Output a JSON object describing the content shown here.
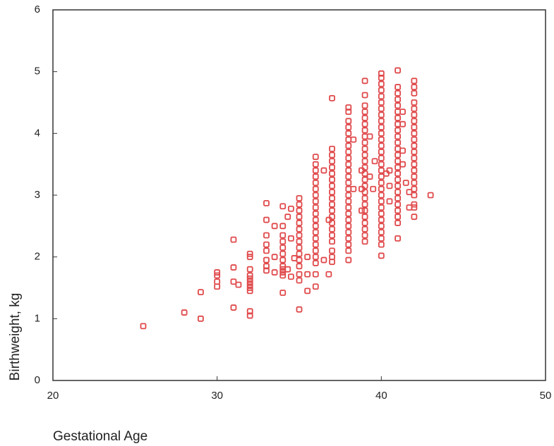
{
  "chart_data": {
    "type": "scatter",
    "x_label": "Gestational Age",
    "y_label": "Birthweight, kg",
    "color": "#e0494b",
    "xlim": [
      20,
      50
    ],
    "xticks": [
      20,
      30,
      40,
      50
    ],
    "ylim": [
      0,
      6
    ],
    "yticks": [
      0,
      1,
      2,
      3,
      4,
      5,
      6
    ],
    "x": [
      25.5,
      28,
      29,
      29,
      30,
      30,
      30,
      30,
      31,
      31,
      31,
      31,
      31.3,
      32,
      32,
      32,
      32,
      32,
      32,
      32,
      32,
      32,
      32,
      32,
      33,
      33,
      33,
      33,
      33,
      33,
      33,
      33,
      33.5,
      33.5,
      33.5,
      34,
      34,
      34,
      34,
      34,
      34,
      34,
      34,
      34,
      34,
      34,
      34,
      34.3,
      34.3,
      34.5,
      34.5,
      34.5,
      34.7,
      35,
      35,
      35,
      35,
      35,
      35,
      35,
      35,
      35,
      35,
      35,
      35,
      35,
      35,
      35,
      35.5,
      35.5,
      35.5,
      36,
      36,
      36,
      36,
      36,
      36,
      36,
      36,
      36,
      36,
      36,
      36,
      36,
      36,
      36,
      36,
      36,
      36,
      36,
      36,
      36.5,
      36.5,
      36.8,
      36.8,
      37,
      37,
      37,
      37,
      37,
      37,
      37,
      37,
      37,
      37,
      37,
      37,
      37,
      37,
      37,
      37,
      37,
      37,
      37,
      37,
      38,
      38,
      38,
      38,
      38,
      38,
      38,
      38,
      38,
      38,
      38,
      38,
      38,
      38,
      38,
      38,
      38,
      38,
      38,
      38,
      38,
      38,
      38,
      38,
      38,
      38.3,
      38.3,
      39,
      39,
      39,
      39,
      39,
      39,
      39,
      39,
      39,
      39,
      39,
      39,
      39,
      39,
      39,
      39,
      39,
      39,
      39,
      39,
      39,
      39,
      39,
      39,
      39,
      38.8,
      38.8,
      38.8,
      39.3,
      39.3,
      39.6,
      39.5,
      40,
      40,
      40,
      40,
      40,
      40,
      40,
      40,
      40,
      40,
      40,
      40,
      40,
      40,
      40,
      40,
      40,
      40,
      40,
      40,
      40,
      40,
      40,
      40,
      40,
      40,
      40,
      40,
      40,
      40,
      40.5,
      40.5,
      40.5,
      40.3,
      41,
      41,
      41,
      41,
      41,
      41,
      41,
      41,
      41,
      41,
      41,
      41,
      41,
      41,
      41,
      41,
      41,
      41,
      41,
      41,
      41,
      41,
      41,
      41,
      41,
      41.3,
      41.3,
      41.3,
      41.3,
      41.5,
      42,
      42,
      42,
      42,
      42,
      42,
      42,
      42,
      42,
      42,
      42,
      42,
      42,
      42,
      42,
      42,
      42,
      42,
      42,
      42,
      42,
      42,
      41.7,
      41.7,
      43
    ],
    "values": [
      0.88,
      1.1,
      1.0,
      1.43,
      1.75,
      1.7,
      1.6,
      1.52,
      2.28,
      1.83,
      1.6,
      1.18,
      1.55,
      2.05,
      2.0,
      1.8,
      1.7,
      1.65,
      1.6,
      1.55,
      1.5,
      1.45,
      1.12,
      1.05,
      2.87,
      2.6,
      2.35,
      2.2,
      2.1,
      1.95,
      1.85,
      1.78,
      2.5,
      2.0,
      1.75,
      2.82,
      2.5,
      2.35,
      2.25,
      2.15,
      2.05,
      1.95,
      1.85,
      1.8,
      1.75,
      1.7,
      1.42,
      2.65,
      1.8,
      2.78,
      2.3,
      1.68,
      1.98,
      2.95,
      2.85,
      2.75,
      2.65,
      2.55,
      2.45,
      2.35,
      2.25,
      2.15,
      2.05,
      1.95,
      1.85,
      1.72,
      1.62,
      1.15,
      2.0,
      1.72,
      1.45,
      3.62,
      3.5,
      3.4,
      3.3,
      3.2,
      3.1,
      3.0,
      2.9,
      2.8,
      2.7,
      2.6,
      2.5,
      2.4,
      2.3,
      2.2,
      2.1,
      2.0,
      1.9,
      1.72,
      1.52,
      1.95,
      3.4,
      1.72,
      2.6,
      4.57,
      3.75,
      3.65,
      3.55,
      3.45,
      3.35,
      3.25,
      3.15,
      3.05,
      2.95,
      2.85,
      2.75,
      2.65,
      2.55,
      2.45,
      2.35,
      2.25,
      2.1,
      2.0,
      1.92,
      4.42,
      4.35,
      4.2,
      4.1,
      4.0,
      3.9,
      3.8,
      3.7,
      3.6,
      3.5,
      3.4,
      3.3,
      3.2,
      3.1,
      3.0,
      2.9,
      2.8,
      2.7,
      2.6,
      2.5,
      2.4,
      2.3,
      2.2,
      2.1,
      1.95,
      3.9,
      3.1,
      4.85,
      4.62,
      4.45,
      4.35,
      4.25,
      4.15,
      4.05,
      3.95,
      3.85,
      3.75,
      3.65,
      3.55,
      3.45,
      3.35,
      3.25,
      3.15,
      3.05,
      2.95,
      2.85,
      2.75,
      2.65,
      2.55,
      2.45,
      2.35,
      2.25,
      3.4,
      3.1,
      2.75,
      3.3,
      3.95,
      3.55,
      3.1,
      4.97,
      4.9,
      4.8,
      4.7,
      4.6,
      4.5,
      4.4,
      4.3,
      4.2,
      4.1,
      4.0,
      3.9,
      3.8,
      3.7,
      3.6,
      3.5,
      3.4,
      3.3,
      3.2,
      3.1,
      3.0,
      2.9,
      2.8,
      2.7,
      2.6,
      2.5,
      2.4,
      2.3,
      2.2,
      2.02,
      3.4,
      3.15,
      2.9,
      3.35,
      5.02,
      4.75,
      4.65,
      4.55,
      4.45,
      4.35,
      4.25,
      4.15,
      4.05,
      3.95,
      3.85,
      3.75,
      3.65,
      3.55,
      3.45,
      3.35,
      3.25,
      3.15,
      3.05,
      2.95,
      2.85,
      2.75,
      2.65,
      2.55,
      2.3,
      4.35,
      4.15,
      3.72,
      3.5,
      3.2,
      4.85,
      4.75,
      4.65,
      4.5,
      4.4,
      4.3,
      4.2,
      4.1,
      4.0,
      3.9,
      3.8,
      3.7,
      3.6,
      3.5,
      3.4,
      3.3,
      3.2,
      3.1,
      3.0,
      2.85,
      2.8,
      2.65,
      3.05,
      2.8,
      3.0
    ]
  }
}
